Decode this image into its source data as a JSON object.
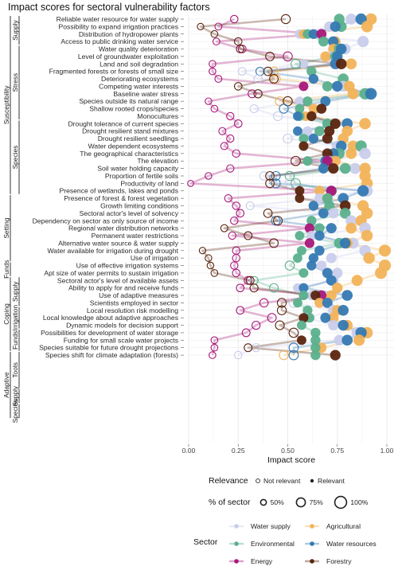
{
  "chart_data": {
    "type": "scatter",
    "title": "Impact scores for sectoral vulnerability factors",
    "xlabel": "Impact score",
    "xlim": [
      0,
      1
    ],
    "xticks": [
      "0.00",
      "0.25",
      "0.50",
      "0.75",
      "1.00"
    ],
    "xtick_values": [
      0,
      0.25,
      0.5,
      0.75,
      1
    ],
    "grid": true,
    "legend_position": "bottom",
    "sectors": [
      {
        "name": "Water supply",
        "color": "#c9cdeb"
      },
      {
        "name": "Agricultural",
        "color": "#f2b35a"
      },
      {
        "name": "Environmental",
        "color": "#5bb08d"
      },
      {
        "name": "Water resources",
        "color": "#3579b2"
      },
      {
        "name": "Energy",
        "color": "#a8187a"
      },
      {
        "name": "Forestry",
        "color": "#5a250f"
      }
    ],
    "legend": {
      "relevance_title": "Relevance",
      "relevance_items": [
        "Not relevant",
        "Relevant"
      ],
      "size_title": "% of sector",
      "size_items": [
        "50%",
        "75%",
        "100%"
      ],
      "sector_title": "Sector"
    },
    "groups": [
      {
        "label": "Susceptibility",
        "level": 0,
        "first": 0,
        "last": 23
      },
      {
        "label": "Setting",
        "level": 0,
        "first": 24,
        "last": 32
      },
      {
        "label": "Funds",
        "level": 0,
        "first": 33,
        "last": 34
      },
      {
        "label": "Coping",
        "level": 0,
        "first": 35,
        "last": 44
      },
      {
        "label": "Adaptive",
        "level": 0,
        "first": 45,
        "last": 53
      },
      {
        "label": "Supply",
        "level": 1,
        "first": 0,
        "last": 3
      },
      {
        "label": "Stress",
        "level": 1,
        "first": 4,
        "last": 13
      },
      {
        "label": "Species",
        "level": 1,
        "first": 14,
        "last": 23
      },
      {
        "label": "Supply",
        "level": 1,
        "first": 35,
        "last": 38
      },
      {
        "label": "Irrigation",
        "level": 1,
        "first": 39,
        "last": 41
      },
      {
        "label": "Funds",
        "level": 1,
        "first": 42,
        "last": 44
      },
      {
        "label": "Tools",
        "level": 1,
        "first": 45,
        "last": 49
      },
      {
        "label": "Supply",
        "level": 1,
        "first": 50,
        "last": 51
      },
      {
        "label": "Species",
        "level": 1,
        "first": 52,
        "last": 53
      }
    ],
    "factors": [
      {
        "label": "Reliable water resource for water supply",
        "v": [
          0.82,
          0.92,
          0.76,
          0.87,
          0.23,
          0.49
        ]
      },
      {
        "label": "Possibility to expand irrigation practices",
        "v": [
          0.71,
          0.9,
          0.77,
          0.74,
          0.15,
          0.06
        ]
      },
      {
        "label": "Distribution of hydropower plants",
        "v": [
          0.56,
          0.58,
          0.6,
          0.63,
          0.67,
          0.13
        ]
      },
      {
        "label": "Access to public drinking water service",
        "v": [
          0.88,
          0.74,
          0.68,
          0.73,
          0.14,
          0.25
        ]
      },
      {
        "label": "Water quality deterioration",
        "v": [
          0.79,
          0.73,
          0.76,
          0.77,
          0.27,
          0.26
        ]
      },
      {
        "label": "Level of groundwater exploitation",
        "v": [
          0.72,
          0.69,
          0.74,
          0.75,
          0.5,
          0.41
        ]
      },
      {
        "label": "Land and soil degradation",
        "v": [
          0.58,
          0.82,
          0.54,
          0.74,
          0.12,
          0.77
        ]
      },
      {
        "label": "Fragmented forests or forests of small size",
        "v": [
          0.27,
          0.43,
          0.62,
          0.36,
          0.12,
          0.4
        ]
      },
      {
        "label": "Deteriorating ecosystems",
        "v": [
          0.35,
          0.44,
          0.78,
          0.63,
          0.15,
          0.43
        ]
      },
      {
        "label": "Competing water interests",
        "v": [
          0.78,
          0.81,
          0.7,
          0.75,
          0.58,
          0.25
        ]
      },
      {
        "label": "Baseline water stress",
        "v": [
          0.91,
          0.83,
          0.89,
          0.92,
          0.32,
          0.35
        ]
      },
      {
        "label": "Species outside its natural range",
        "v": [
          0.56,
          0.46,
          0.6,
          0.69,
          0.1,
          0.5
        ]
      },
      {
        "label": "Shallow rooted crops/species",
        "v": [
          0.33,
          0.63,
          0.56,
          0.48,
          0.13,
          0.67
        ]
      },
      {
        "label": "Monocultures",
        "v": [
          0.45,
          0.59,
          0.56,
          0.55,
          0.21,
          0.62
        ]
      },
      {
        "label": "Drought tolerance of current species",
        "v": [
          0.73,
          0.89,
          0.7,
          0.8,
          0.25,
          0.74
        ]
      },
      {
        "label": "Drought resilient stand mixtures",
        "v": [
          0.6,
          0.8,
          0.66,
          0.55,
          0.17,
          0.71
        ]
      },
      {
        "label": "Drought resilient seedlings",
        "v": [
          0.5,
          0.78,
          0.58,
          0.63,
          0.21,
          0.7
        ]
      },
      {
        "label": "Water dependent ecosystems",
        "v": [
          0.75,
          0.83,
          0.87,
          0.77,
          0.18,
          0.58
        ]
      },
      {
        "label": "The geographical characteristics",
        "v": [
          0.89,
          0.82,
          0.76,
          0.73,
          0.24,
          0.7
        ]
      },
      {
        "label": "The elevation",
        "v": [
          0.71,
          0.74,
          0.6,
          0.69,
          0.7,
          0.54
        ]
      },
      {
        "label": "Soil water holding capacity",
        "v": [
          0.84,
          0.89,
          0.79,
          0.68,
          0.21,
          0.73
        ]
      },
      {
        "label": "Proportion of fertile soils",
        "v": [
          0.38,
          0.89,
          0.51,
          0.44,
          0.1,
          0.41
        ]
      },
      {
        "label": "Productivity of land",
        "v": [
          0.51,
          0.9,
          0.54,
          0.44,
          0.01,
          0.41
        ]
      },
      {
        "label": "Presence of wetlands, lakes and ponds",
        "v": [
          0.9,
          0.66,
          0.72,
          0.88,
          0.72,
          0.56
        ]
      },
      {
        "label": "Presence of forest & forest vegetation",
        "v": [
          0.66,
          0.7,
          0.7,
          0.78,
          0.2,
          0.56
        ]
      },
      {
        "label": "Growth limiting conditions",
        "v": [
          0.31,
          0.88,
          0.71,
          0.63,
          0.24,
          0.79
        ]
      },
      {
        "label": "Sectoral actor's level of solvency",
        "v": [
          0.73,
          0.9,
          0.79,
          0.68,
          0.26,
          0.4
        ]
      },
      {
        "label": "Dependency on sector as only source of income",
        "v": [
          0.82,
          0.87,
          0.62,
          0.44,
          0.23,
          0.45
        ]
      },
      {
        "label": "Regional water distribution networks",
        "v": [
          0.89,
          0.82,
          0.66,
          0.72,
          0.61,
          0.18
        ]
      },
      {
        "label": "Permanent water restrictions",
        "v": [
          0.62,
          0.9,
          0.56,
          0.66,
          0.22,
          0.3
        ]
      },
      {
        "label": "Alternative water source & water supply",
        "v": [
          0.83,
          0.8,
          0.76,
          0.79,
          0.61,
          0.43
        ]
      },
      {
        "label": "Water available for irrigation during drought",
        "v": [
          0.89,
          0.99,
          0.57,
          0.66,
          0.24,
          0.07
        ]
      },
      {
        "label": "Use of irrigation",
        "v": [
          0.72,
          0.91,
          0.55,
          0.63,
          0.24,
          0.1
        ]
      },
      {
        "label": "Use of effective irrigation systems",
        "v": [
          0.67,
          0.99,
          0.51,
          0.62,
          0.23,
          0.11
        ]
      },
      {
        "label": "Apt size of water permits to sustain irrigation",
        "v": [
          0.75,
          0.97,
          0.58,
          0.7,
          0.24,
          0.13
        ]
      },
      {
        "label": "Sectoral actor's level of available assets",
        "v": [
          0.73,
          0.85,
          0.33,
          0.72,
          0.3,
          0.31
        ]
      },
      {
        "label": "Ability to apply for and receive funds",
        "v": [
          0.55,
          0.75,
          0.43,
          0.58,
          0.26,
          0.33
        ]
      },
      {
        "label": "Use of adaptive measures",
        "v": [
          0.62,
          0.72,
          0.58,
          0.8,
          0.67,
          0.64
        ]
      },
      {
        "label": "Scientists employed in sector",
        "v": [
          0.53,
          0.66,
          0.55,
          0.7,
          0.38,
          0.47
        ]
      },
      {
        "label": "Local resolution risk modelling",
        "v": [
          0.73,
          0.75,
          0.6,
          0.78,
          0.26,
          0.47
        ]
      },
      {
        "label": "Local knowledge about adaptive approaches",
        "v": [
          0.6,
          0.73,
          0.61,
          0.69,
          0.42,
          0.58
        ]
      },
      {
        "label": "Dynamic models for decision support",
        "v": [
          0.73,
          0.8,
          0.57,
          0.78,
          0.34,
          0.46
        ]
      },
      {
        "label": "Possibilities for development of water storage",
        "v": [
          0.85,
          0.9,
          0.64,
          0.87,
          0.29,
          0.53
        ]
      },
      {
        "label": "Funding for small scale water projects",
        "v": [
          0.76,
          0.86,
          0.64,
          0.8,
          0.13,
          0.57
        ]
      },
      {
        "label": "Species suitable for future drought projections",
        "v": [
          0.34,
          0.67,
          0.64,
          0.53,
          0.13,
          0.3
        ]
      },
      {
        "label": "Species shift for climate adaptation (forests)",
        "v": [
          0.25,
          0.48,
          0.64,
          0.53,
          0.12,
          0.74
        ]
      }
    ]
  }
}
